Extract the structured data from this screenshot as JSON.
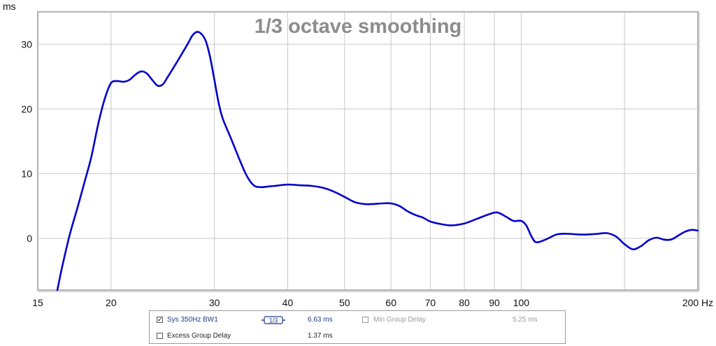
{
  "chart_data": {
    "type": "line",
    "title": "1/3 octave smoothing",
    "y_unit": "ms",
    "x_unit": "Hz",
    "x_scale": "log",
    "xlim": [
      15,
      200
    ],
    "ylim": [
      -8,
      35
    ],
    "x_ticks": [
      {
        "value": 15,
        "label": "15"
      },
      {
        "value": 20,
        "label": "20"
      },
      {
        "value": 30,
        "label": "30"
      },
      {
        "value": 40,
        "label": "40"
      },
      {
        "value": 50,
        "label": "50"
      },
      {
        "value": 60,
        "label": "60"
      },
      {
        "value": 70,
        "label": "70"
      },
      {
        "value": 80,
        "label": "80"
      },
      {
        "value": 90,
        "label": "90"
      },
      {
        "value": 100,
        "label": "100"
      },
      {
        "value": 200,
        "label": "200 Hz"
      }
    ],
    "x_minor_grid": [
      150
    ],
    "y_ticks": [
      0,
      10,
      20,
      30
    ],
    "grid": true,
    "color": "#0000cc",
    "series": [
      {
        "name": "Sys 350Hz BW1",
        "x": [
          16.2,
          16.5,
          17.0,
          17.5,
          18.0,
          18.5,
          19.0,
          19.5,
          20.0,
          20.5,
          21.0,
          21.5,
          22.0,
          22.5,
          23.0,
          23.5,
          24.0,
          24.5,
          25.0,
          26.0,
          27.0,
          27.5,
          28.0,
          28.5,
          29.0,
          29.5,
          30.0,
          30.5,
          31.0,
          32.0,
          33.0,
          34.0,
          35.0,
          36.0,
          37.0,
          38.0,
          40.0,
          42.0,
          44.0,
          46.0,
          48.0,
          50.0,
          52.0,
          54.0,
          56.0,
          58.0,
          60.0,
          62.0,
          64.0,
          66.0,
          68.0,
          70.0,
          73.0,
          76.0,
          80.0,
          84.0,
          88.0,
          91.0,
          94.0,
          97.0,
          100.0,
          102.0,
          104.0,
          106.0,
          110.0,
          115.0,
          120.0,
          125.0,
          130.0,
          135.0,
          140.0,
          145.0,
          150.0,
          155.0,
          160.0,
          165.0,
          170.0,
          175.0,
          180.0,
          185.0,
          190.0,
          195.0,
          200.0
        ],
        "y": [
          -8.0,
          -4.5,
          0.5,
          4.5,
          8.5,
          12.5,
          17.5,
          21.5,
          24.0,
          24.3,
          24.2,
          24.5,
          25.3,
          25.8,
          25.5,
          24.5,
          23.6,
          23.8,
          25.0,
          27.5,
          30.0,
          31.3,
          31.9,
          31.6,
          30.5,
          28.0,
          24.5,
          21.0,
          18.5,
          15.5,
          12.5,
          9.8,
          8.2,
          7.9,
          8.0,
          8.1,
          8.3,
          8.2,
          8.1,
          7.8,
          7.2,
          6.4,
          5.6,
          5.3,
          5.3,
          5.4,
          5.4,
          5.0,
          4.2,
          3.6,
          3.2,
          2.6,
          2.2,
          2.0,
          2.3,
          3.0,
          3.7,
          4.0,
          3.4,
          2.7,
          2.7,
          2.0,
          0.4,
          -0.6,
          -0.2,
          0.6,
          0.7,
          0.6,
          0.6,
          0.7,
          0.8,
          0.3,
          -0.9,
          -1.7,
          -1.2,
          -0.3,
          0.1,
          -0.2,
          -0.2,
          0.4,
          1.0,
          1.3,
          1.2
        ]
      }
    ]
  },
  "legend": {
    "row1": {
      "trace_label": "Sys 350Hz BW1",
      "trace_checked": "✓",
      "smoothing_label": "1/3",
      "trace_value": "6.63 ms",
      "min_gd_label": "Min Group Delay",
      "min_gd_value": "5.25 ms"
    },
    "row2": {
      "excess_gd_label": "Excess Group Delay",
      "excess_gd_value": "1.37 ms"
    }
  }
}
